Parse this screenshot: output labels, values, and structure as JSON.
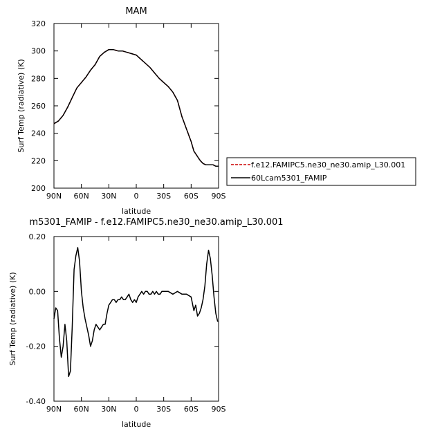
{
  "chart_data": [
    {
      "type": "line",
      "title": "MAM",
      "xlabel": "latitude",
      "ylabel": "Surf Temp (radiative) (K)",
      "xlim": [
        90,
        -90
      ],
      "ylim": [
        200,
        320
      ],
      "xticks": [
        90,
        60,
        30,
        0,
        -30,
        -60,
        -90
      ],
      "xtick_labels": [
        "90N",
        "60N",
        "30N",
        "0",
        "30S",
        "60S",
        "90S"
      ],
      "yticks": [
        200,
        220,
        240,
        260,
        280,
        300,
        320
      ],
      "ytick_labels": [
        "200",
        "220",
        "240",
        "260",
        "280",
        "300",
        "320"
      ],
      "grid": false,
      "legend_placement": "right",
      "series": [
        {
          "name": "f.e12.FAMIPC5.ne30_ne30.amip_L30.001",
          "color": "#cc0000",
          "dash": "dashed",
          "x": [
            90,
            85,
            80,
            75,
            70,
            65,
            60,
            55,
            50,
            45,
            40,
            35,
            30,
            25,
            20,
            15,
            10,
            5,
            0,
            -5,
            -10,
            -15,
            -20,
            -25,
            -30,
            -35,
            -40,
            -45,
            -50,
            -55,
            -60,
            -63,
            -66,
            -68,
            -70,
            -73,
            -76,
            -80,
            -84,
            -87,
            -90
          ],
          "y": [
            247,
            249,
            253,
            259,
            266,
            273,
            277,
            281,
            286,
            290,
            296,
            299,
            301,
            301,
            300,
            300,
            299,
            298,
            297,
            294,
            291,
            288,
            284,
            280,
            277,
            274,
            270,
            264,
            252,
            243,
            234,
            227,
            224,
            222,
            220,
            218,
            217,
            217,
            217,
            216,
            216
          ]
        },
        {
          "name": "60Lcam5301_FAMIP",
          "color": "#000000",
          "dash": "solid",
          "x": [
            90,
            85,
            80,
            75,
            70,
            65,
            60,
            55,
            50,
            45,
            40,
            35,
            30,
            25,
            20,
            15,
            10,
            5,
            0,
            -5,
            -10,
            -15,
            -20,
            -25,
            -30,
            -35,
            -40,
            -45,
            -50,
            -55,
            -60,
            -63,
            -66,
            -68,
            -70,
            -73,
            -76,
            -80,
            -84,
            -87,
            -90
          ],
          "y": [
            247,
            249,
            253,
            259,
            266,
            273,
            277,
            281,
            286,
            290,
            296,
            299,
            301,
            301,
            300,
            300,
            299,
            298,
            297,
            294,
            291,
            288,
            284,
            280,
            277,
            274,
            270,
            264,
            252,
            243,
            234,
            227,
            224,
            222,
            220,
            218,
            217,
            217,
            217,
            216,
            216
          ]
        }
      ]
    },
    {
      "type": "line",
      "title": "m5301_FAMIP - f.e12.FAMIPC5.ne30_ne30.amip_L30.001",
      "xlabel": "latitude",
      "ylabel": "Surf Temp (radiative) (K)",
      "xlim": [
        90,
        -90
      ],
      "ylim": [
        -0.4,
        0.2
      ],
      "xticks": [
        90,
        60,
        30,
        0,
        -30,
        -60,
        -90
      ],
      "xtick_labels": [
        "90N",
        "60N",
        "30N",
        "0",
        "30S",
        "60S",
        "90S"
      ],
      "yticks": [
        -0.4,
        -0.2,
        0.0,
        0.2
      ],
      "ytick_labels": [
        "-0.40",
        "-0.20",
        "0.00",
        "0.20"
      ],
      "grid": false,
      "series": [
        {
          "color": "#000000",
          "dash": "solid",
          "x": [
            90,
            88,
            86,
            84,
            82,
            80,
            78,
            76,
            74,
            72,
            70,
            68,
            66,
            64,
            62,
            60,
            58,
            56,
            54,
            52,
            50,
            48,
            46,
            44,
            42,
            40,
            38,
            36,
            34,
            32,
            30,
            28,
            26,
            24,
            22,
            20,
            18,
            16,
            14,
            12,
            10,
            8,
            6,
            4,
            2,
            0,
            -2,
            -4,
            -6,
            -8,
            -10,
            -12,
            -14,
            -16,
            -18,
            -20,
            -22,
            -24,
            -26,
            -28,
            -30,
            -35,
            -40,
            -45,
            -50,
            -55,
            -60,
            -63,
            -65,
            -67,
            -69,
            -71,
            -73,
            -75,
            -77,
            -79,
            -81,
            -83,
            -85,
            -87,
            -89
          ],
          "y": [
            -0.1,
            -0.06,
            -0.07,
            -0.17,
            -0.24,
            -0.2,
            -0.12,
            -0.18,
            -0.31,
            -0.29,
            -0.13,
            0.08,
            0.13,
            0.16,
            0.11,
            0.0,
            -0.06,
            -0.1,
            -0.13,
            -0.16,
            -0.2,
            -0.18,
            -0.14,
            -0.12,
            -0.13,
            -0.14,
            -0.13,
            -0.12,
            -0.12,
            -0.08,
            -0.05,
            -0.04,
            -0.03,
            -0.03,
            -0.04,
            -0.03,
            -0.03,
            -0.02,
            -0.03,
            -0.03,
            -0.02,
            -0.01,
            -0.03,
            -0.04,
            -0.03,
            -0.04,
            -0.02,
            -0.01,
            0.0,
            -0.01,
            0.0,
            0.0,
            -0.01,
            -0.01,
            0.0,
            -0.01,
            0.0,
            -0.01,
            -0.01,
            0.0,
            0.0,
            0.0,
            -0.01,
            0.0,
            -0.01,
            -0.01,
            -0.02,
            -0.07,
            -0.05,
            -0.09,
            -0.08,
            -0.06,
            -0.03,
            0.02,
            0.1,
            0.15,
            0.12,
            0.06,
            -0.02,
            -0.08,
            -0.11
          ]
        }
      ]
    }
  ]
}
